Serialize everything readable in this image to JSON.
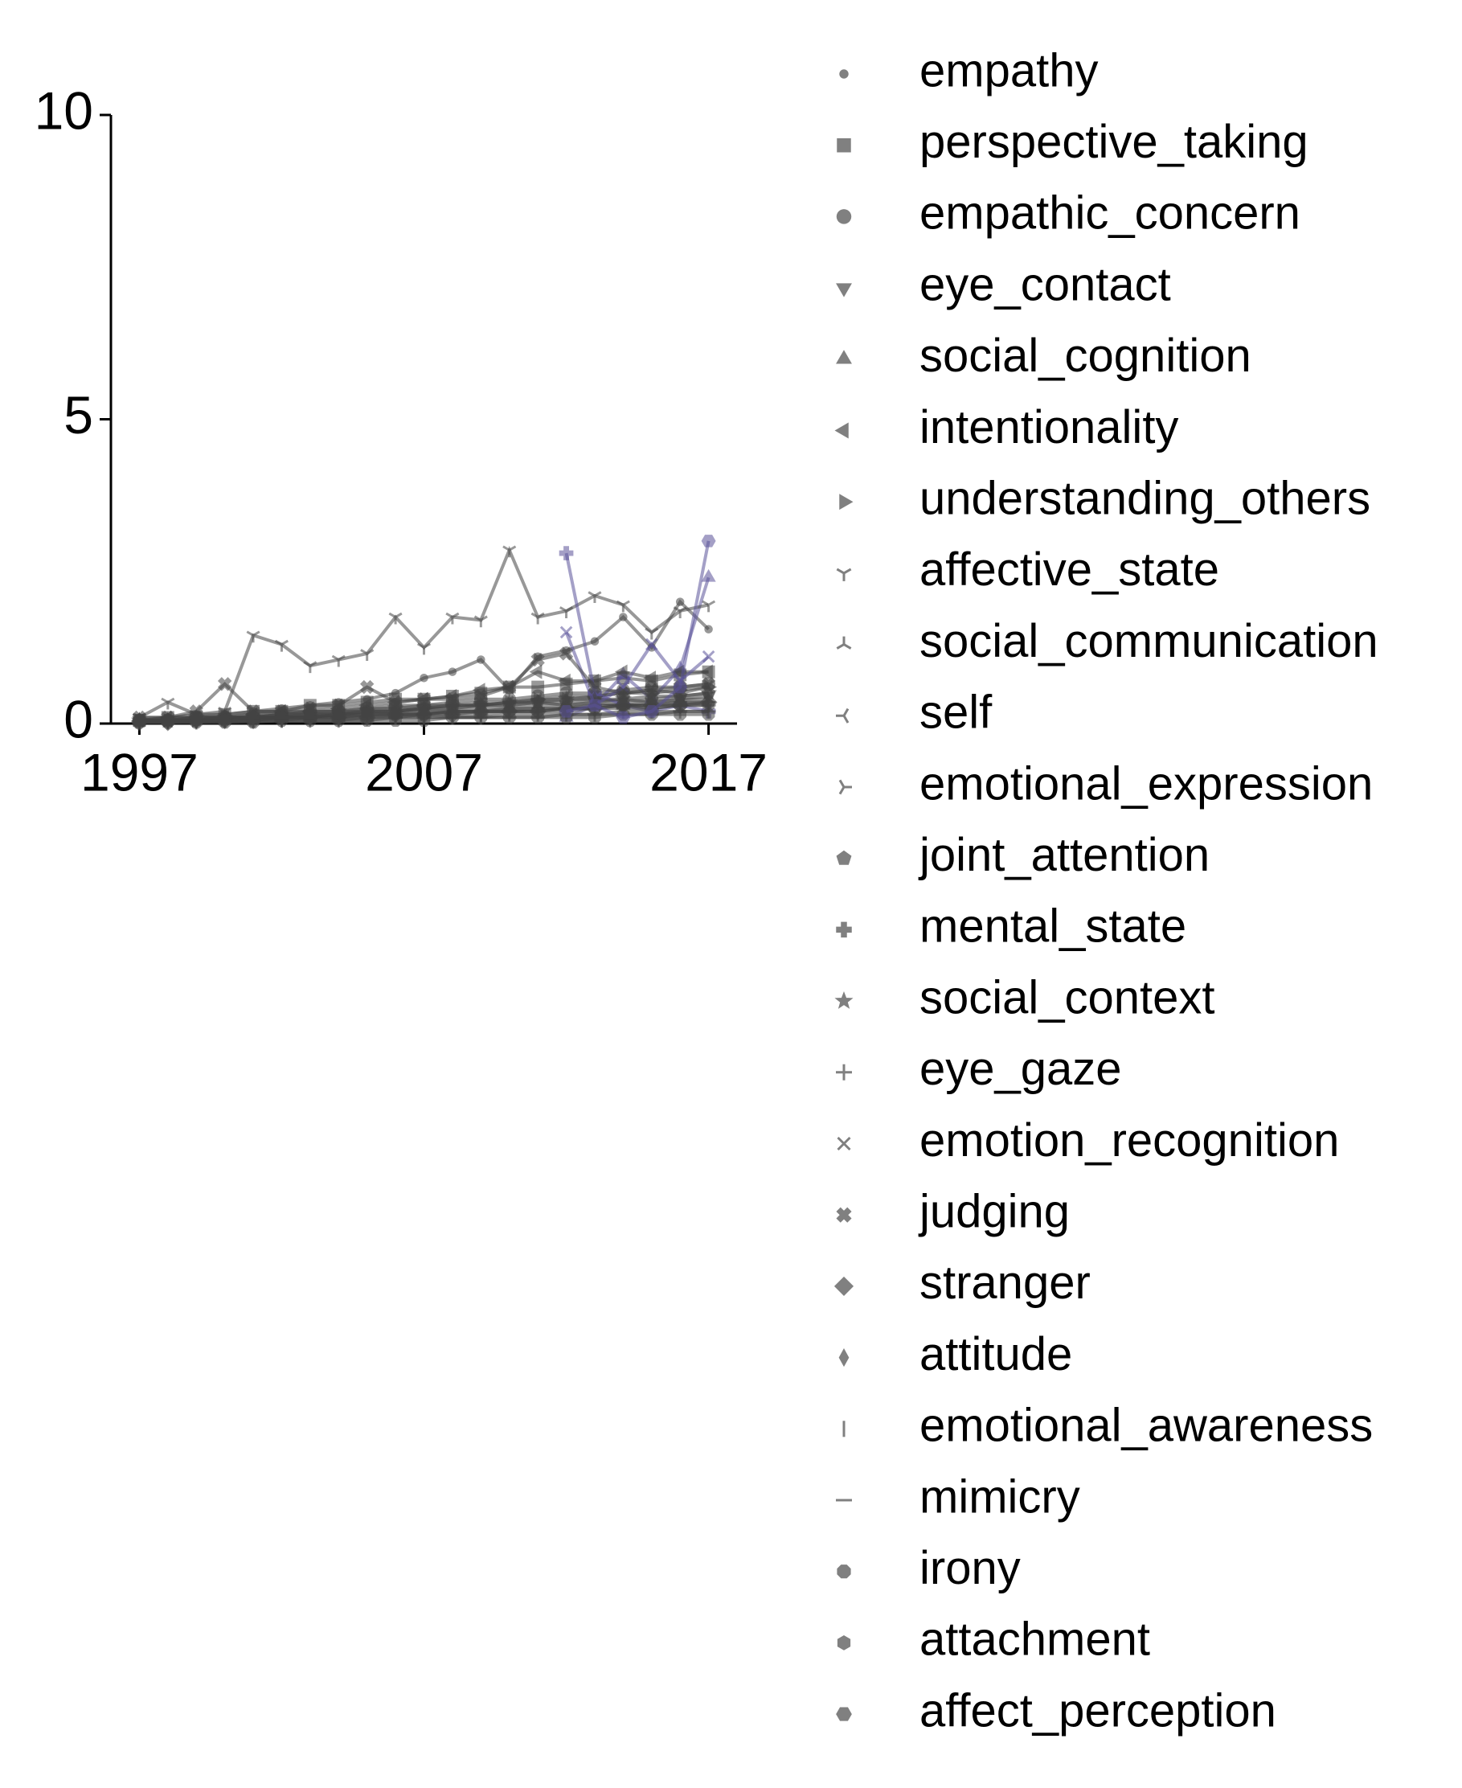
{
  "chart_data": {
    "type": "line",
    "x": [
      1997,
      1998,
      1999,
      2000,
      2001,
      2002,
      2003,
      2004,
      2005,
      2006,
      2007,
      2008,
      2009,
      2010,
      2011,
      2012,
      2013,
      2014,
      2015,
      2016,
      2017
    ],
    "xlim": [
      1996,
      2018
    ],
    "xticks": [
      1997,
      2007,
      2017
    ],
    "ylim": [
      0,
      10
    ],
    "yticks": [
      0,
      5,
      10
    ],
    "line_opacity": 0.55,
    "legend_marker_color": "#808080",
    "legend": "outside right",
    "series": [
      {
        "name": "empathy",
        "color": "#444444",
        "marker": "point",
        "values": [
          0.1,
          0.1,
          0.15,
          0.15,
          0.2,
          0.25,
          0.3,
          0.35,
          0.4,
          0.5,
          0.75,
          0.85,
          1.05,
          0.55,
          1.1,
          1.2,
          1.35,
          1.75,
          1.25,
          2.0,
          1.55
        ]
      },
      {
        "name": "perspective_taking",
        "color": "#444444",
        "marker": "square",
        "values": [
          0.05,
          0.1,
          0.1,
          0.15,
          0.2,
          0.2,
          0.3,
          0.3,
          0.35,
          0.4,
          0.4,
          0.45,
          0.5,
          0.6,
          0.6,
          0.65,
          0.7,
          0.75,
          0.7,
          0.8,
          0.85
        ]
      },
      {
        "name": "empathic_concern",
        "color": "#444444",
        "marker": "circle",
        "values": [
          0.05,
          0.05,
          0.1,
          0.1,
          0.1,
          0.15,
          0.2,
          0.2,
          0.25,
          0.3,
          0.3,
          0.35,
          0.4,
          0.4,
          0.45,
          0.5,
          0.5,
          0.55,
          0.6,
          0.6,
          0.65
        ]
      },
      {
        "name": "eye_contact",
        "color": "#444444",
        "marker": "triangle_down",
        "values": [
          0.05,
          0.05,
          0.05,
          0.1,
          0.1,
          0.1,
          0.15,
          0.15,
          0.2,
          0.2,
          0.25,
          0.25,
          0.3,
          0.3,
          0.35,
          0.3,
          0.35,
          0.4,
          0.35,
          0.4,
          0.45
        ]
      },
      {
        "name": "social_cognition",
        "color": "#5a5299",
        "marker": "triangle_up",
        "values": [
          null,
          null,
          null,
          null,
          null,
          null,
          null,
          null,
          null,
          null,
          null,
          null,
          null,
          null,
          null,
          0.1,
          0.3,
          0.8,
          0.4,
          0.9,
          2.4
        ]
      },
      {
        "name": "intentionality",
        "color": "#444444",
        "marker": "triangle_left",
        "values": [
          0.05,
          0.05,
          0.1,
          0.1,
          0.15,
          0.2,
          0.2,
          0.25,
          0.3,
          0.35,
          0.4,
          0.45,
          0.55,
          0.6,
          0.85,
          0.7,
          0.7,
          0.85,
          0.75,
          0.85,
          0.85
        ]
      },
      {
        "name": "understanding_others",
        "color": "#444444",
        "marker": "triangle_right",
        "values": [
          0.05,
          0.05,
          0.05,
          0.1,
          0.1,
          0.1,
          0.15,
          0.15,
          0.2,
          0.2,
          0.25,
          0.3,
          0.3,
          0.35,
          0.4,
          0.4,
          0.45,
          0.5,
          0.5,
          0.55,
          0.6
        ]
      },
      {
        "name": "affective_state",
        "color": "#444444",
        "marker": "tri_down",
        "values": [
          0.1,
          0.35,
          0.15,
          0.2,
          1.45,
          1.3,
          0.95,
          1.05,
          1.15,
          1.75,
          1.25,
          1.75,
          1.7,
          2.85,
          1.75,
          1.85,
          2.1,
          1.95,
          1.5,
          1.85,
          1.95
        ]
      },
      {
        "name": "social_communication",
        "color": "#444444",
        "marker": "tri_up",
        "values": [
          0.02,
          0.05,
          0.05,
          0.05,
          0.1,
          0.1,
          0.1,
          0.15,
          0.15,
          0.2,
          0.2,
          0.2,
          0.25,
          0.25,
          0.3,
          0.3,
          0.35,
          0.3,
          0.35,
          0.4,
          0.4
        ]
      },
      {
        "name": "self",
        "color": "#444444",
        "marker": "tri_left",
        "values": [
          0.05,
          0.1,
          0.1,
          0.1,
          0.15,
          0.15,
          0.2,
          0.2,
          0.25,
          0.25,
          0.3,
          0.3,
          0.35,
          0.35,
          0.4,
          0.45,
          0.45,
          0.5,
          0.55,
          0.5,
          0.6
        ]
      },
      {
        "name": "emotional_expression",
        "color": "#444444",
        "marker": "tri_right",
        "values": [
          0.02,
          0.05,
          0.05,
          0.05,
          0.05,
          0.1,
          0.1,
          0.1,
          0.15,
          0.15,
          0.15,
          0.2,
          0.2,
          0.2,
          0.25,
          0.25,
          0.3,
          0.3,
          0.3,
          0.35,
          0.35
        ]
      },
      {
        "name": "joint_attention",
        "color": "#444444",
        "marker": "pentagon",
        "values": [
          0.05,
          0.05,
          0.05,
          0.1,
          0.1,
          0.15,
          0.15,
          0.15,
          0.2,
          0.2,
          0.25,
          0.25,
          0.3,
          0.3,
          0.35,
          0.35,
          0.4,
          0.35,
          0.4,
          0.45,
          0.5
        ]
      },
      {
        "name": "mental_state",
        "color": "#5a5299",
        "marker": "plus_filled",
        "values": [
          null,
          null,
          null,
          null,
          null,
          null,
          null,
          null,
          null,
          null,
          null,
          null,
          null,
          null,
          null,
          2.8,
          0.5,
          0.3,
          0.2,
          0.3,
          0.2
        ]
      },
      {
        "name": "social_context",
        "color": "#444444",
        "marker": "star",
        "values": [
          0.05,
          0.05,
          0.1,
          0.1,
          0.1,
          0.15,
          0.15,
          0.2,
          0.2,
          0.25,
          0.25,
          0.3,
          0.3,
          0.35,
          0.35,
          0.4,
          0.4,
          0.4,
          0.45,
          0.45,
          0.5
        ]
      },
      {
        "name": "eye_gaze",
        "color": "#444444",
        "marker": "plus",
        "values": [
          0.02,
          0.02,
          0.05,
          0.05,
          0.05,
          0.05,
          0.1,
          0.1,
          0.1,
          0.1,
          0.15,
          0.15,
          0.15,
          0.2,
          0.2,
          0.2,
          0.25,
          0.25,
          0.25,
          0.3,
          0.3
        ]
      },
      {
        "name": "emotion_recognition",
        "color": "#5a5299",
        "marker": "x",
        "values": [
          null,
          null,
          null,
          null,
          null,
          null,
          null,
          null,
          null,
          null,
          null,
          null,
          null,
          null,
          null,
          1.5,
          0.3,
          0.6,
          1.3,
          0.7,
          1.1
        ]
      },
      {
        "name": "judging",
        "color": "#444444",
        "marker": "x_filled",
        "values": [
          0.1,
          0.1,
          0.2,
          0.65,
          0.2,
          0.2,
          0.25,
          0.3,
          0.6,
          0.35,
          0.4,
          0.4,
          0.45,
          0.6,
          1.05,
          1.15,
          0.6,
          0.5,
          0.55,
          0.6,
          0.65
        ]
      },
      {
        "name": "stranger",
        "color": "#444444",
        "marker": "diamond",
        "values": [
          0.02,
          0.02,
          0.05,
          0.05,
          0.05,
          0.1,
          0.1,
          0.1,
          0.1,
          0.15,
          0.15,
          0.15,
          0.2,
          0.2,
          0.2,
          0.25,
          0.25,
          0.3,
          0.3,
          0.3,
          0.35
        ]
      },
      {
        "name": "attitude",
        "color": "#444444",
        "marker": "thin_diamond",
        "values": [
          0.05,
          0.05,
          0.05,
          0.1,
          0.1,
          0.1,
          0.1,
          0.15,
          0.15,
          0.15,
          0.2,
          0.2,
          0.2,
          0.25,
          0.25,
          0.25,
          0.3,
          0.3,
          0.3,
          0.35,
          0.35
        ]
      },
      {
        "name": "emotional_awareness",
        "color": "#444444",
        "marker": "vline",
        "values": [
          0.02,
          0.02,
          0.02,
          0.05,
          0.05,
          0.05,
          0.05,
          0.05,
          0.1,
          0.1,
          0.1,
          0.1,
          0.1,
          0.15,
          0.15,
          0.15,
          0.15,
          0.2,
          0.2,
          0.2,
          0.2
        ]
      },
      {
        "name": "mimicry",
        "color": "#444444",
        "marker": "hline",
        "values": [
          0.02,
          0.02,
          0.02,
          0.02,
          0.05,
          0.05,
          0.05,
          0.05,
          0.05,
          0.1,
          0.1,
          0.1,
          0.1,
          0.1,
          0.1,
          0.15,
          0.15,
          0.15,
          0.15,
          0.2,
          0.2
        ]
      },
      {
        "name": "irony",
        "color": "#444444",
        "marker": "octagon",
        "values": [
          0.02,
          0.02,
          0.02,
          0.02,
          0.02,
          0.05,
          0.05,
          0.05,
          0.05,
          0.05,
          0.05,
          0.1,
          0.1,
          0.1,
          0.1,
          0.1,
          0.1,
          0.15,
          0.15,
          0.15,
          0.15
        ]
      },
      {
        "name": "attachment",
        "color": "#444444",
        "marker": "hexagon1",
        "values": [
          0.05,
          0.05,
          0.05,
          0.05,
          0.1,
          0.1,
          0.1,
          0.1,
          0.15,
          0.15,
          0.15,
          0.2,
          0.2,
          0.2,
          0.2,
          0.25,
          0.25,
          0.3,
          0.25,
          0.3,
          0.3
        ]
      },
      {
        "name": "affect_perception",
        "color": "#5a5299",
        "marker": "hexagon2",
        "values": [
          null,
          null,
          null,
          null,
          null,
          null,
          null,
          null,
          null,
          null,
          null,
          null,
          null,
          null,
          null,
          0.2,
          0.3,
          0.1,
          0.2,
          0.6,
          3.0
        ]
      }
    ]
  }
}
